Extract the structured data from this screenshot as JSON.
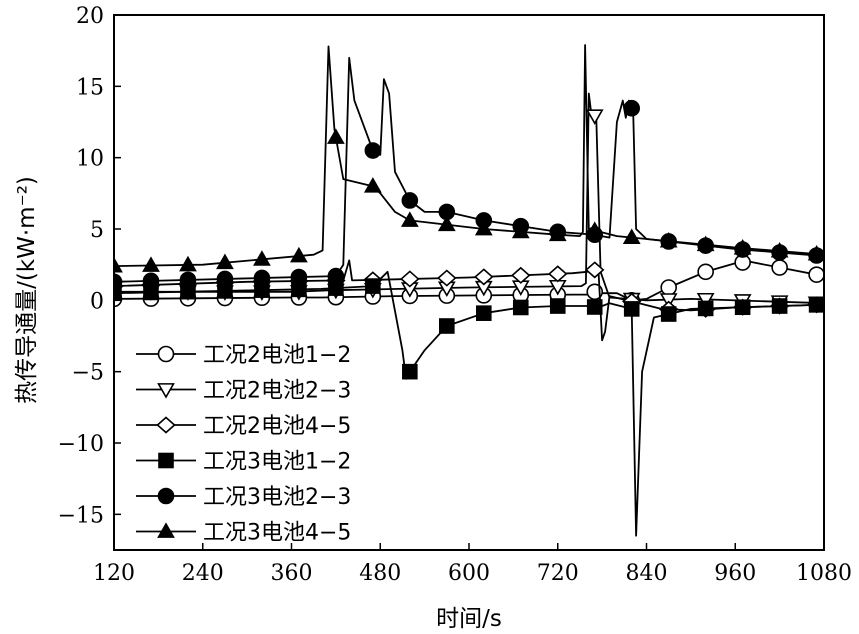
{
  "chart_data": {
    "type": "line",
    "xlabel": "时间/s",
    "ylabel": "热传导通量/(kW·m⁻²)",
    "xlim": [
      120,
      1080
    ],
    "ylim": [
      -17.5,
      20
    ],
    "xticks": [
      120,
      240,
      360,
      480,
      600,
      720,
      840,
      960,
      1080
    ],
    "yticks": [
      20,
      15,
      10,
      5,
      0,
      -5,
      -10,
      -15
    ],
    "grid": false,
    "legend_position": "bottom-left",
    "series": [
      {
        "name": "工况2电池1−2",
        "marker": "circle-open",
        "points": [
          [
            120,
            0.1
          ],
          [
            360,
            0.2
          ],
          [
            400,
            0.2
          ],
          [
            500,
            0.3
          ],
          [
            740,
            0.4
          ],
          [
            760,
            0.4
          ],
          [
            770,
            0.6
          ],
          [
            775,
            0.5
          ],
          [
            800,
            0.5
          ],
          [
            820,
            0.0
          ],
          [
            840,
            0.1
          ],
          [
            870,
            0.9
          ],
          [
            920,
            2.0
          ],
          [
            960,
            2.6
          ],
          [
            980,
            2.7
          ],
          [
            1020,
            2.3
          ],
          [
            1080,
            1.7
          ]
        ],
        "marker_x": [
          120,
          170,
          220,
          270,
          320,
          370,
          420,
          470,
          520,
          570,
          620,
          670,
          720,
          770,
          820,
          870,
          920,
          970,
          1020,
          1070
        ]
      },
      {
        "name": "工况2电池2−3",
        "marker": "triangle-down-open",
        "points": [
          [
            120,
            0.6
          ],
          [
            360,
            0.6
          ],
          [
            410,
            0.7
          ],
          [
            600,
            0.9
          ],
          [
            752,
            1.0
          ],
          [
            758,
            1.2
          ],
          [
            762,
            14.5
          ],
          [
            766,
            12.8
          ],
          [
            772,
            13.0
          ],
          [
            778,
            2.0
          ],
          [
            790,
            0.2
          ],
          [
            840,
            0.0
          ],
          [
            900,
            0.1
          ],
          [
            1080,
            -0.2
          ]
        ],
        "marker_x": [
          120,
          170,
          220,
          270,
          320,
          370,
          420,
          470,
          520,
          570,
          620,
          670,
          720,
          770,
          820,
          870,
          920,
          970,
          1020,
          1070
        ]
      },
      {
        "name": "工况2电池4−5",
        "marker": "diamond-open",
        "points": [
          [
            120,
            1.0
          ],
          [
            300,
            1.3
          ],
          [
            430,
            1.4
          ],
          [
            438,
            2.8
          ],
          [
            442,
            1.4
          ],
          [
            600,
            1.6
          ],
          [
            740,
            1.9
          ],
          [
            760,
            2.0
          ],
          [
            775,
            2.2
          ],
          [
            780,
            -2.8
          ],
          [
            784,
            -2.2
          ],
          [
            790,
            0.3
          ],
          [
            830,
            -0.2
          ],
          [
            860,
            -0.6
          ],
          [
            900,
            -0.7
          ],
          [
            960,
            -0.5
          ],
          [
            1080,
            -0.3
          ]
        ],
        "marker_x": [
          120,
          170,
          220,
          270,
          320,
          370,
          420,
          470,
          520,
          570,
          620,
          670,
          720,
          770,
          820,
          870,
          920,
          970,
          1020,
          1070
        ]
      },
      {
        "name": "工况3电池1−2",
        "marker": "square-filled",
        "points": [
          [
            120,
            0.5
          ],
          [
            400,
            0.8
          ],
          [
            470,
            1.0
          ],
          [
            490,
            2.0
          ],
          [
            510,
            -3.5
          ],
          [
            515,
            -5.5
          ],
          [
            520,
            -5.0
          ],
          [
            540,
            -3.5
          ],
          [
            570,
            -1.8
          ],
          [
            620,
            -0.9
          ],
          [
            670,
            -0.5
          ],
          [
            720,
            -0.4
          ],
          [
            760,
            -0.4
          ],
          [
            775,
            -0.5
          ],
          [
            790,
            -0.2
          ],
          [
            820,
            -0.6
          ],
          [
            826,
            -16.5
          ],
          [
            834,
            -5.0
          ],
          [
            850,
            -1.2
          ],
          [
            900,
            -0.6
          ],
          [
            1080,
            -0.3
          ]
        ],
        "marker_x": [
          120,
          170,
          220,
          270,
          320,
          370,
          420,
          470,
          520,
          570,
          620,
          670,
          720,
          770,
          820,
          870,
          920,
          970,
          1020,
          1070
        ]
      },
      {
        "name": "工况3电池2−3",
        "marker": "circle-filled",
        "points": [
          [
            120,
            1.3
          ],
          [
            420,
            1.7
          ],
          [
            430,
            2.5
          ],
          [
            438,
            17.0
          ],
          [
            445,
            14.0
          ],
          [
            470,
            10.5
          ],
          [
            480,
            10.2
          ],
          [
            485,
            15.5
          ],
          [
            492,
            14.5
          ],
          [
            500,
            9.0
          ],
          [
            520,
            7.0
          ],
          [
            540,
            6.2
          ],
          [
            570,
            6.2
          ],
          [
            620,
            5.6
          ],
          [
            720,
            4.8
          ],
          [
            770,
            4.6
          ],
          [
            790,
            4.4
          ],
          [
            800,
            12.5
          ],
          [
            808,
            14.0
          ],
          [
            812,
            12.8
          ],
          [
            816,
            14.0
          ],
          [
            822,
            13.2
          ],
          [
            826,
            5.0
          ],
          [
            840,
            4.3
          ],
          [
            960,
            3.6
          ],
          [
            1080,
            3.1
          ]
        ],
        "marker_x": [
          120,
          170,
          220,
          270,
          320,
          370,
          420,
          470,
          520,
          570,
          620,
          670,
          720,
          770,
          820,
          870,
          920,
          970,
          1020,
          1070
        ]
      },
      {
        "name": "工况3电池4−5",
        "marker": "triangle-up-filled",
        "points": [
          [
            120,
            2.4
          ],
          [
            240,
            2.5
          ],
          [
            390,
            3.2
          ],
          [
            402,
            3.5
          ],
          [
            410,
            17.8
          ],
          [
            418,
            12.0
          ],
          [
            430,
            8.5
          ],
          [
            470,
            8.0
          ],
          [
            480,
            7.5
          ],
          [
            500,
            6.2
          ],
          [
            520,
            5.6
          ],
          [
            620,
            5.0
          ],
          [
            720,
            4.6
          ],
          [
            750,
            4.5
          ],
          [
            754,
            4.8
          ],
          [
            757,
            17.9
          ],
          [
            762,
            5.0
          ],
          [
            800,
            4.5
          ],
          [
            960,
            3.7
          ],
          [
            1080,
            3.2
          ]
        ],
        "marker_x": [
          120,
          170,
          220,
          270,
          320,
          370,
          420,
          470,
          520,
          570,
          620,
          670,
          720,
          770,
          820,
          870,
          920,
          970,
          1020,
          1070
        ]
      }
    ]
  }
}
